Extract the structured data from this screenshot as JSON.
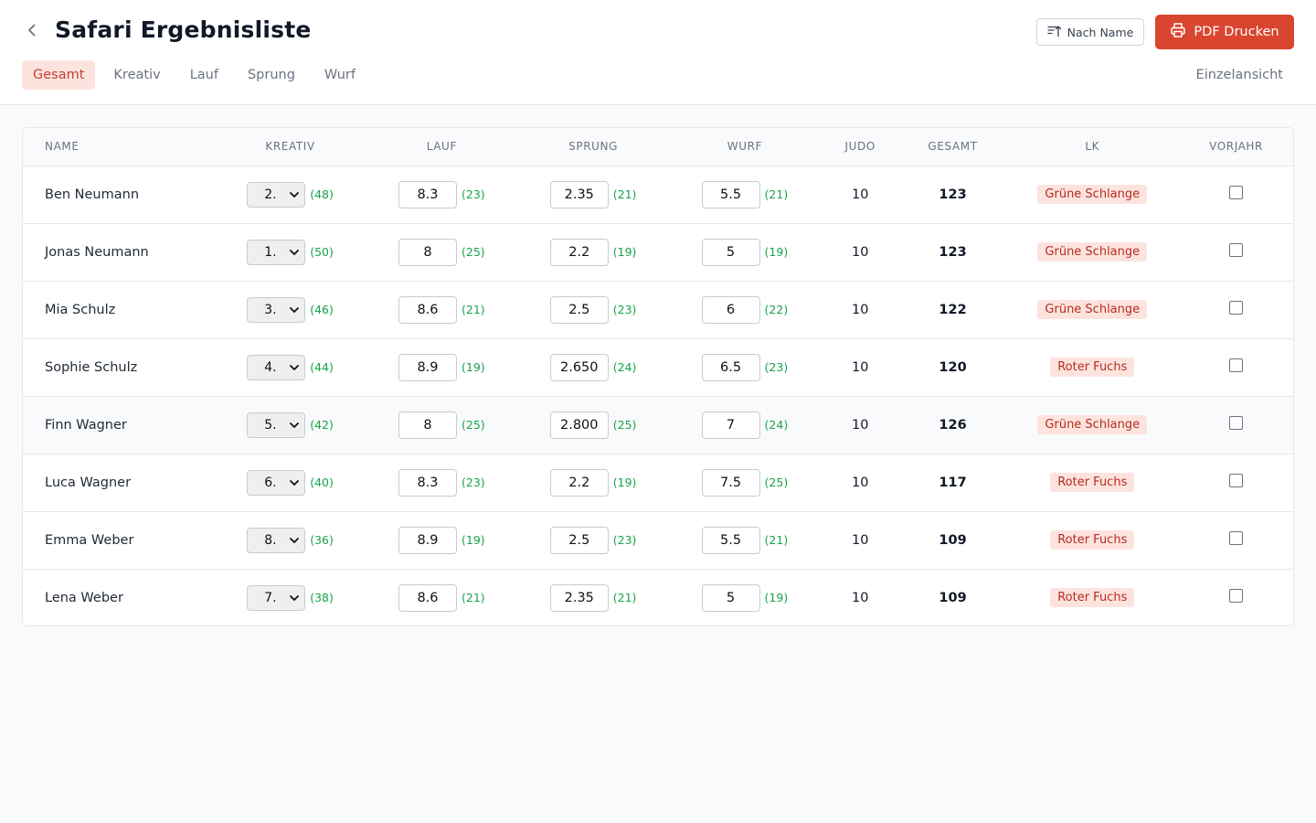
{
  "header": {
    "title": "Safari Ergebnisliste",
    "sort_label": "Nach Name",
    "pdf_label": "PDF Drucken",
    "single_view_label": "Einzelansicht",
    "tabs": [
      {
        "label": "Gesamt",
        "active": true
      },
      {
        "label": "Kreativ",
        "active": false
      },
      {
        "label": "Lauf",
        "active": false
      },
      {
        "label": "Sprung",
        "active": false
      },
      {
        "label": "Wurf",
        "active": false
      }
    ]
  },
  "colors": {
    "accent": "#d9452f",
    "accent_light": "#fde3de",
    "points_green": "#16a34a"
  },
  "table": {
    "columns": [
      "NAME",
      "KREATIV",
      "LAUF",
      "SPRUNG",
      "WURF",
      "JUDO",
      "GESAMT",
      "LK",
      "VORJAHR"
    ],
    "rows": [
      {
        "name": "Ben Neumann",
        "kreativ": "2.",
        "kreativ_pts": "(48)",
        "lauf": "8.3",
        "lauf_pts": "(23)",
        "sprung": "2.35",
        "sprung_pts": "(21)",
        "wurf": "5.5",
        "wurf_pts": "(21)",
        "judo": "10",
        "gesamt": "123",
        "lk": "Grüne Schlange",
        "vorjahr": false
      },
      {
        "name": "Jonas Neumann",
        "kreativ": "1.",
        "kreativ_pts": "(50)",
        "lauf": "8",
        "lauf_pts": "(25)",
        "sprung": "2.2",
        "sprung_pts": "(19)",
        "wurf": "5",
        "wurf_pts": "(19)",
        "judo": "10",
        "gesamt": "123",
        "lk": "Grüne Schlange",
        "vorjahr": false
      },
      {
        "name": "Mia Schulz",
        "kreativ": "3.",
        "kreativ_pts": "(46)",
        "lauf": "8.6",
        "lauf_pts": "(21)",
        "sprung": "2.5",
        "sprung_pts": "(23)",
        "wurf": "6",
        "wurf_pts": "(22)",
        "judo": "10",
        "gesamt": "122",
        "lk": "Grüne Schlange",
        "vorjahr": false
      },
      {
        "name": "Sophie Schulz",
        "kreativ": "4.",
        "kreativ_pts": "(44)",
        "lauf": "8.9",
        "lauf_pts": "(19)",
        "sprung": "2.650",
        "sprung_pts": "(24)",
        "wurf": "6.5",
        "wurf_pts": "(23)",
        "judo": "10",
        "gesamt": "120",
        "lk": "Roter Fuchs",
        "vorjahr": false
      },
      {
        "name": "Finn Wagner",
        "kreativ": "5.",
        "kreativ_pts": "(42)",
        "lauf": "8",
        "lauf_pts": "(25)",
        "sprung": "2.800",
        "sprung_pts": "(25)",
        "wurf": "7",
        "wurf_pts": "(24)",
        "judo": "10",
        "gesamt": "126",
        "lk": "Grüne Schlange",
        "vorjahr": false,
        "highlight": true
      },
      {
        "name": "Luca Wagner",
        "kreativ": "6.",
        "kreativ_pts": "(40)",
        "lauf": "8.3",
        "lauf_pts": "(23)",
        "sprung": "2.2",
        "sprung_pts": "(19)",
        "wurf": "7.5",
        "wurf_pts": "(25)",
        "judo": "10",
        "gesamt": "117",
        "lk": "Roter Fuchs",
        "vorjahr": false
      },
      {
        "name": "Emma Weber",
        "kreativ": "8.",
        "kreativ_pts": "(36)",
        "lauf": "8.9",
        "lauf_pts": "(19)",
        "sprung": "2.5",
        "sprung_pts": "(23)",
        "wurf": "5.5",
        "wurf_pts": "(21)",
        "judo": "10",
        "gesamt": "109",
        "lk": "Roter Fuchs",
        "vorjahr": false
      },
      {
        "name": "Lena Weber",
        "kreativ": "7.",
        "kreativ_pts": "(38)",
        "lauf": "8.6",
        "lauf_pts": "(21)",
        "sprung": "2.35",
        "sprung_pts": "(21)",
        "wurf": "5",
        "wurf_pts": "(19)",
        "judo": "10",
        "gesamt": "109",
        "lk": "Roter Fuchs",
        "vorjahr": false
      }
    ]
  }
}
